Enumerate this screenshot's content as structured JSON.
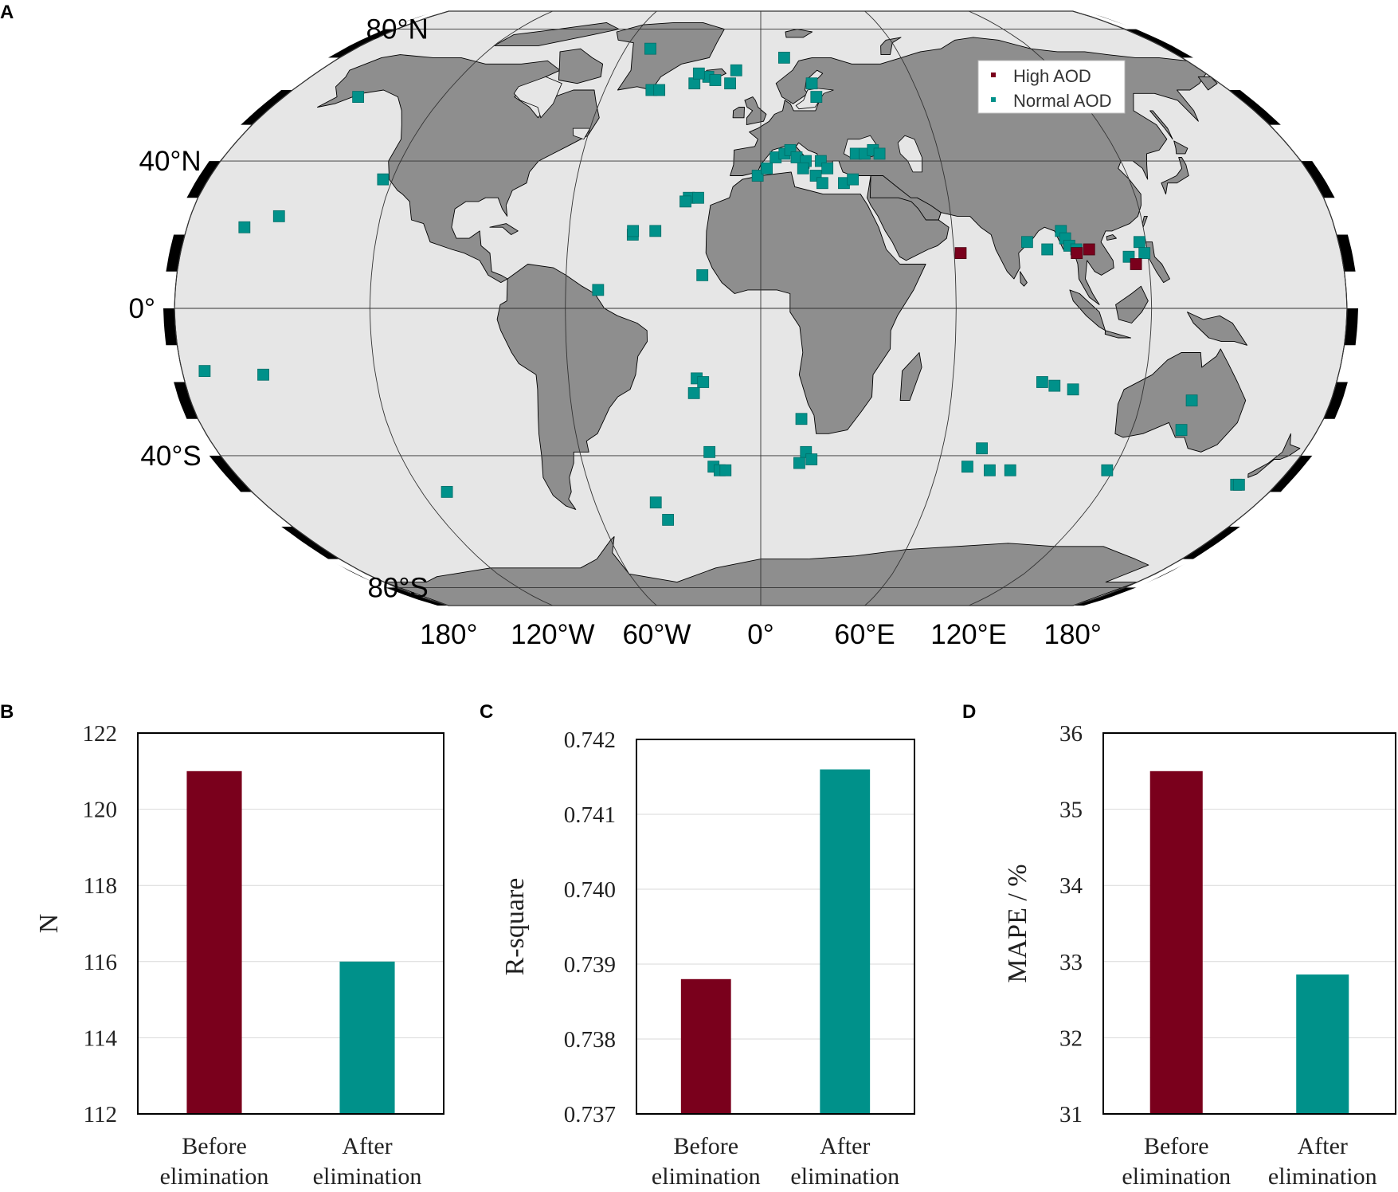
{
  "panels": {
    "a": "A",
    "b": "B",
    "c": "C",
    "d": "D"
  },
  "colors": {
    "high": "#7a001c",
    "normal": "#00918a",
    "land": "#8e8e8e",
    "ocean": "#e6e6e6",
    "grid": "#333333"
  },
  "chart_data": [
    {
      "type": "scatter",
      "panel": "A",
      "projection": "robinson",
      "lat_ticks": [
        {
          "lat": 80,
          "label": "80°N"
        },
        {
          "lat": 40,
          "label": "40°N"
        },
        {
          "lat": 0,
          "label": "0°"
        },
        {
          "lat": -40,
          "label": "40°S"
        },
        {
          "lat": -80,
          "label": "80°S"
        }
      ],
      "lon_ticks": [
        {
          "lon": -180,
          "label": "180°"
        },
        {
          "lon": -120,
          "label": "120°W"
        },
        {
          "lon": -60,
          "label": "60°W"
        },
        {
          "lon": 0,
          "label": "0°"
        },
        {
          "lon": 60,
          "label": "60°E"
        },
        {
          "lon": 120,
          "label": "120°E"
        },
        {
          "lon": 180,
          "label": "180°"
        }
      ],
      "legend": {
        "position": "top-right",
        "high_label": "High AOD",
        "normal_label": "Normal AOD"
      },
      "series": [
        {
          "name": "High AOD",
          "points": [
            [
              62,
              15
            ],
            [
              98,
              15
            ],
            [
              102,
              16
            ],
            [
              116,
              12
            ]
          ]
        },
        {
          "name": "Normal AOD",
          "points": [
            [
              -152,
              58
            ],
            [
              -123,
              35
            ],
            [
              -162,
              22
            ],
            [
              -152,
              25
            ],
            [
              -173,
              -17
            ],
            [
              -155,
              -18
            ],
            [
              -111,
              -50
            ],
            [
              -50,
              5
            ],
            [
              -49,
              73
            ],
            [
              -42,
              60
            ],
            [
              -39,
              60
            ],
            [
              -26,
              62
            ],
            [
              -21,
              64
            ],
            [
              -25,
              65
            ],
            [
              -18,
              63
            ],
            [
              -12,
              62
            ],
            [
              -10,
              66
            ],
            [
              -23,
              30
            ],
            [
              -20,
              30
            ],
            [
              -24,
              29
            ],
            [
              -40,
              20
            ],
            [
              -40,
              21
            ],
            [
              -33,
              21
            ],
            [
              -18,
              9
            ],
            [
              -20,
              -19
            ],
            [
              -18,
              -20
            ],
            [
              -21,
              -23
            ],
            [
              -17,
              -39
            ],
            [
              -16,
              -43
            ],
            [
              -14,
              -44
            ],
            [
              -12,
              -44
            ],
            [
              -38,
              -53
            ],
            [
              -35,
              -58
            ],
            [
              -1,
              36
            ],
            [
              2,
              38
            ],
            [
              5,
              41
            ],
            [
              8,
              42
            ],
            [
              10,
              43
            ],
            [
              12,
              41
            ],
            [
              15,
              40
            ],
            [
              14,
              38
            ],
            [
              18,
              36
            ],
            [
              20,
              40
            ],
            [
              22,
              38
            ],
            [
              20,
              34
            ],
            [
              27,
              34
            ],
            [
              30,
              35
            ],
            [
              32,
              42
            ],
            [
              35,
              42
            ],
            [
              38,
              43
            ],
            [
              40,
              42
            ],
            [
              20,
              62
            ],
            [
              21,
              58
            ],
            [
              10,
              70
            ],
            [
              13,
              -30
            ],
            [
              15,
              -39
            ],
            [
              13,
              -42
            ],
            [
              17,
              -41
            ],
            [
              73,
              -38
            ],
            [
              70,
              -43
            ],
            [
              78,
              -44
            ],
            [
              85,
              -44
            ],
            [
              88,
              -20
            ],
            [
              92,
              -21
            ],
            [
              98,
              -22
            ],
            [
              83,
              18
            ],
            [
              89,
              16
            ],
            [
              94,
              21
            ],
            [
              95,
              19
            ],
            [
              96,
              17
            ],
            [
              98,
              16
            ],
            [
              114,
              14
            ],
            [
              118,
              18
            ],
            [
              119,
              15
            ],
            [
              118,
              -44
            ],
            [
              136,
              -25
            ],
            [
              136,
              -33
            ],
            [
              166,
              -48
            ],
            [
              167,
              -48
            ]
          ]
        }
      ]
    },
    {
      "type": "bar",
      "panel": "B",
      "categories": [
        "Before\nelimination",
        "After\nelimination"
      ],
      "values": [
        121,
        116
      ],
      "ylabel": "N",
      "ylim": [
        112,
        122
      ],
      "yticks": [
        112,
        114,
        116,
        118,
        120,
        122
      ],
      "ytick_labels": [
        "112",
        "114",
        "116",
        "118",
        "120",
        "122"
      ],
      "grid": true
    },
    {
      "type": "bar",
      "panel": "C",
      "categories": [
        "Before\nelimination",
        "After\nelimination"
      ],
      "values": [
        0.7388,
        0.7416
      ],
      "ylabel": "R-square",
      "ylim": [
        0.737,
        0.742
      ],
      "yticks": [
        0.737,
        0.738,
        0.739,
        0.74,
        0.741,
        0.742
      ],
      "ytick_labels": [
        "0.737",
        "0.738",
        "0.739",
        "0.740",
        "0.741",
        "0.742"
      ],
      "grid": true
    },
    {
      "type": "bar",
      "panel": "D",
      "categories": [
        "Before\nelimination",
        "After\nelimination"
      ],
      "values": [
        35.5,
        32.83
      ],
      "ylabel": "MAPE / %",
      "ylim": [
        31,
        36
      ],
      "yticks": [
        31,
        32,
        33,
        34,
        35,
        36
      ],
      "ytick_labels": [
        "31",
        "32",
        "33",
        "34",
        "35",
        "36"
      ],
      "grid": true
    }
  ]
}
